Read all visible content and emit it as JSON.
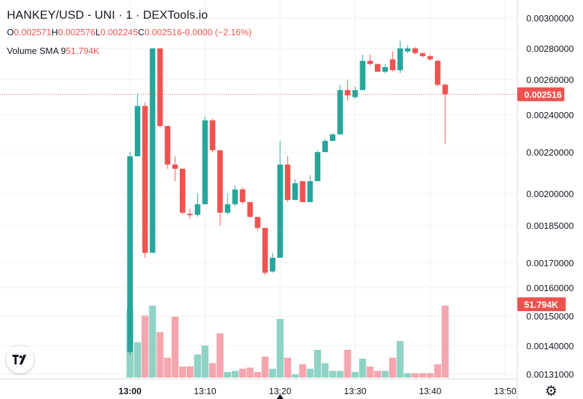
{
  "header": {
    "title": "HANKEY/USD - UNI · 1 · DEXTools.io",
    "ohlc": {
      "o_label": "O",
      "o_value": "0.002571",
      "h_label": "H",
      "h_value": "0.002576",
      "l_label": "L",
      "l_value": "0.002245",
      "c_label": "C",
      "c_value": "0.002516",
      "change": "-0.0000 (−2.16%)"
    },
    "volume_label": "Volume SMA 9",
    "volume_value": "51.794K"
  },
  "colors": {
    "up": "#26a69a",
    "down": "#ef5350",
    "up_volume": "#8fd3c5",
    "down_volume": "#f4a5ad",
    "grid": "#eef0f3",
    "axis_text": "#131722",
    "price_tag": "#ef5350"
  },
  "icons": {
    "logo": "tradingview-logo-icon",
    "settings": "gear-icon"
  },
  "chart_data": {
    "type": "candlestick",
    "title": "HANKEY/USD - UNI · 1 · DEXTools.io",
    "y_ticks": [
      "0.00300000",
      "0.00280000",
      "0.00260000",
      "0.00240000",
      "0.00220000",
      "0.00200000",
      "0.00185000",
      "0.00170000",
      "0.00160000",
      "0.00150000",
      "0.00140000",
      "0.00131000"
    ],
    "x_ticks": [
      "13:00",
      "13:10",
      "13:20",
      "13:30",
      "13:40",
      "13:50"
    ],
    "x_tick_minutes": [
      0,
      10,
      20,
      30,
      40,
      50
    ],
    "last_price_label": "0.002516",
    "volume_sma_label": "51.794K",
    "candles": [
      {
        "t": 0,
        "o": 0.00138,
        "h": 0.0022,
        "l": 0.00137,
        "c": 0.00218,
        "v": 0.62
      },
      {
        "t": 1,
        "o": 0.00218,
        "h": 0.00252,
        "l": 0.00218,
        "c": 0.00245,
        "v": 0.32
      },
      {
        "t": 2,
        "o": 0.00245,
        "h": 0.00247,
        "l": 0.00172,
        "c": 0.00174,
        "v": 0.56
      },
      {
        "t": 3,
        "o": 0.00174,
        "h": 0.0028,
        "l": 0.00174,
        "c": 0.0028,
        "v": 0.65
      },
      {
        "t": 4,
        "o": 0.0028,
        "h": 0.0028,
        "l": 0.00233,
        "c": 0.00234,
        "v": 0.41
      },
      {
        "t": 5,
        "o": 0.00234,
        "h": 0.00234,
        "l": 0.00212,
        "c": 0.00214,
        "v": 0.18
      },
      {
        "t": 6,
        "o": 0.00214,
        "h": 0.00218,
        "l": 0.00206,
        "c": 0.00212,
        "v": 0.55
      },
      {
        "t": 7,
        "o": 0.00212,
        "h": 0.00212,
        "l": 0.0019,
        "c": 0.00191,
        "v": 0.1
      },
      {
        "t": 8,
        "o": 0.001905,
        "h": 0.00193,
        "l": 0.00188,
        "c": 0.0019,
        "v": 0.1
      },
      {
        "t": 9,
        "o": 0.0019,
        "h": 0.002,
        "l": 0.00189,
        "c": 0.00195,
        "v": 0.21
      },
      {
        "t": 10,
        "o": 0.00195,
        "h": 0.00239,
        "l": 0.00195,
        "c": 0.00237,
        "v": 0.29
      },
      {
        "t": 11,
        "o": 0.00237,
        "h": 0.00238,
        "l": 0.0022,
        "c": 0.00221,
        "v": 0.13
      },
      {
        "t": 12,
        "o": 0.00221,
        "h": 0.00221,
        "l": 0.00185,
        "c": 0.00191,
        "v": 0.4
      },
      {
        "t": 13,
        "o": 0.00191,
        "h": 0.002,
        "l": 0.0019,
        "c": 0.00195,
        "v": 0.05
      },
      {
        "t": 14,
        "o": 0.00195,
        "h": 0.00204,
        "l": 0.00194,
        "c": 0.00202,
        "v": 0.06
      },
      {
        "t": 15,
        "o": 0.00202,
        "h": 0.00203,
        "l": 0.00195,
        "c": 0.00196,
        "v": 0.08
      },
      {
        "t": 16,
        "o": 0.00196,
        "h": 0.00196,
        "l": 0.00189,
        "c": 0.00189,
        "v": 0.09
      },
      {
        "t": 17,
        "o": 0.00189,
        "h": 0.00189,
        "l": 0.00183,
        "c": 0.00184,
        "v": 0.05
      },
      {
        "t": 18,
        "o": 0.00184,
        "h": 0.00184,
        "l": 0.00165,
        "c": 0.00166,
        "v": 0.19
      },
      {
        "t": 19,
        "o": 0.001665,
        "h": 0.00174,
        "l": 0.00166,
        "c": 0.00172,
        "v": 0.08
      },
      {
        "t": 20,
        "o": 0.00172,
        "h": 0.00226,
        "l": 0.00172,
        "c": 0.00214,
        "v": 0.53
      },
      {
        "t": 21,
        "o": 0.00214,
        "h": 0.00218,
        "l": 0.00196,
        "c": 0.00197,
        "v": 0.18
      },
      {
        "t": 22,
        "o": 0.00197,
        "h": 0.00207,
        "l": 0.00197,
        "c": 0.00205,
        "v": 0.03
      },
      {
        "t": 23,
        "o": 0.00206,
        "h": 0.00206,
        "l": 0.00196,
        "c": 0.00196,
        "v": 0.12
      },
      {
        "t": 24,
        "o": 0.00196,
        "h": 0.00209,
        "l": 0.00196,
        "c": 0.00206,
        "v": 0.08
      },
      {
        "t": 25,
        "o": 0.00206,
        "h": 0.00221,
        "l": 0.00206,
        "c": 0.0022,
        "v": 0.25
      },
      {
        "t": 26,
        "o": 0.0022,
        "h": 0.00227,
        "l": 0.0022,
        "c": 0.00226,
        "v": 0.13
      },
      {
        "t": 27,
        "o": 0.00226,
        "h": 0.0023,
        "l": 0.00226,
        "c": 0.002295,
        "v": 0.06
      },
      {
        "t": 28,
        "o": 0.002295,
        "h": 0.00257,
        "l": 0.002295,
        "c": 0.00254,
        "v": 0.06
      },
      {
        "t": 29,
        "o": 0.00254,
        "h": 0.0026,
        "l": 0.00248,
        "c": 0.00251,
        "v": 0.25
      },
      {
        "t": 30,
        "o": 0.0025,
        "h": 0.00256,
        "l": 0.00249,
        "c": 0.00254,
        "v": 0.05
      },
      {
        "t": 31,
        "o": 0.00254,
        "h": 0.00276,
        "l": 0.00254,
        "c": 0.00272,
        "v": 0.17
      },
      {
        "t": 32,
        "o": 0.00272,
        "h": 0.00276,
        "l": 0.00269,
        "c": 0.0027,
        "v": 0.1
      },
      {
        "t": 33,
        "o": 0.0027,
        "h": 0.0027,
        "l": 0.00265,
        "c": 0.00265,
        "v": 0.06
      },
      {
        "t": 34,
        "o": 0.00265,
        "h": 0.0027,
        "l": 0.00264,
        "c": 0.00268,
        "v": 0.06
      },
      {
        "t": 35,
        "o": 0.00273,
        "h": 0.00278,
        "l": 0.00265,
        "c": 0.00266,
        "v": 0.18
      },
      {
        "t": 36,
        "o": 0.00266,
        "h": 0.00285,
        "l": 0.00264,
        "c": 0.0028,
        "v": 0.33
      },
      {
        "t": 37,
        "o": 0.00278,
        "h": 0.00282,
        "l": 0.00277,
        "c": 0.0028,
        "v": 0.04
      },
      {
        "t": 38,
        "o": 0.0028,
        "h": 0.00281,
        "l": 0.00276,
        "c": 0.00277,
        "v": 0.04
      },
      {
        "t": 39,
        "o": 0.00277,
        "h": 0.00277,
        "l": 0.00274,
        "c": 0.00275,
        "v": 0.04
      },
      {
        "t": 40,
        "o": 0.00275,
        "h": 0.00276,
        "l": 0.00272,
        "c": 0.00273,
        "v": 0.04
      },
      {
        "t": 41,
        "o": 0.00272,
        "h": 0.00273,
        "l": 0.00256,
        "c": 0.00257,
        "v": 0.12
      },
      {
        "t": 42,
        "o": 0.002571,
        "h": 0.002576,
        "l": 0.002245,
        "c": 0.002516,
        "v": 0.65
      }
    ]
  }
}
